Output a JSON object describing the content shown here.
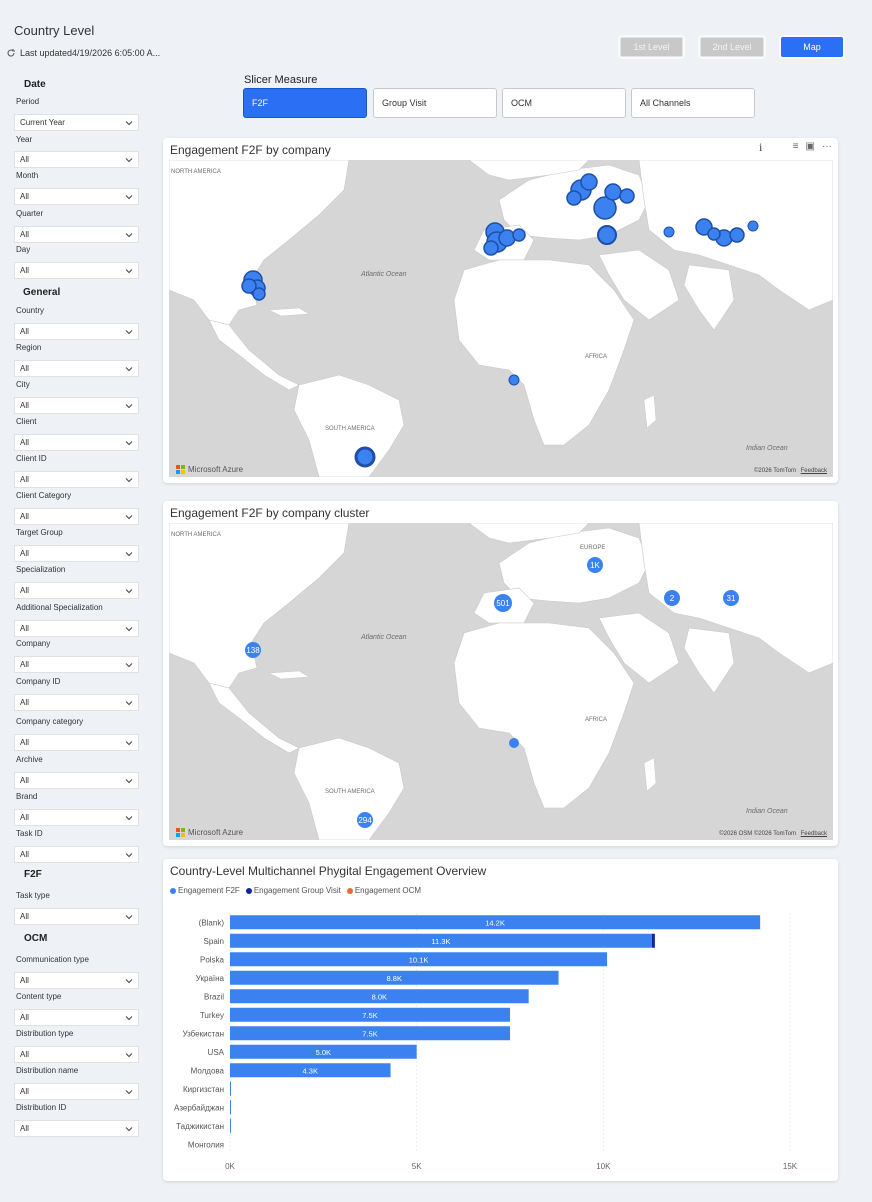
{
  "header": {
    "title": "Country Level",
    "last_updated": "Last updated4/19/2026 6:05:00 A..."
  },
  "nav": {
    "first_level": "1st Level",
    "second_level": "2nd Level",
    "map": "Map"
  },
  "filters": {
    "date_title": "Date",
    "general_title": "General",
    "f2f_title": "F2F",
    "ocm_title": "OCM",
    "items": [
      {
        "label": "Period",
        "value": "Current Year"
      },
      {
        "label": "Year",
        "value": "All"
      },
      {
        "label": "Month",
        "value": "All"
      },
      {
        "label": "Quarter",
        "value": "All"
      },
      {
        "label": "Day",
        "value": "All"
      },
      {
        "label": "Country",
        "value": "All"
      },
      {
        "label": "Region",
        "value": "All"
      },
      {
        "label": "City",
        "value": "All"
      },
      {
        "label": "Client",
        "value": "All"
      },
      {
        "label": "Client ID",
        "value": "All"
      },
      {
        "label": "Client Category",
        "value": "All"
      },
      {
        "label": "Target Group",
        "value": "All"
      },
      {
        "label": "Specialization",
        "value": "All"
      },
      {
        "label": "Additional Specialization",
        "value": "All"
      },
      {
        "label": "Company",
        "value": "All"
      },
      {
        "label": "Company ID",
        "value": "All"
      },
      {
        "label": "Company category",
        "value": "All"
      },
      {
        "label": "Archive",
        "value": "All"
      },
      {
        "label": "Brand",
        "value": "All"
      },
      {
        "label": "Task ID",
        "value": "All"
      },
      {
        "label": "Task type",
        "value": "All"
      },
      {
        "label": "Communication type",
        "value": "All"
      },
      {
        "label": "Content type",
        "value": "All"
      },
      {
        "label": "Distribution type",
        "value": "All"
      },
      {
        "label": "Distribution name",
        "value": "All"
      },
      {
        "label": "Distribution ID",
        "value": "All"
      }
    ]
  },
  "slicer": {
    "title": "Slicer Measure",
    "options": [
      "F2F",
      "Group Visit",
      "OCM",
      "All Channels"
    ],
    "selected": "F2F"
  },
  "map1": {
    "title": "Engagement F2F by company",
    "labels": {
      "north_america": "NORTH AMERICA",
      "atlantic": "Atlantic Ocean",
      "africa": "AFRICA",
      "south_america": "SOUTH AMERICA",
      "indian": "Indian Ocean"
    },
    "attribution": "Microsoft Azure",
    "copyright": "©2026 TomTom",
    "feedback": "Feedback"
  },
  "map2": {
    "title": "Engagement F2F by company cluster",
    "labels": {
      "north_america": "NORTH AMERICA",
      "atlantic": "Atlantic Ocean",
      "africa": "AFRICA",
      "south_america": "SOUTH AMERICA",
      "indian": "Indian Ocean",
      "europe": "EUROPE"
    },
    "clusters": [
      "1K",
      "501",
      "2",
      "31",
      "138",
      "294"
    ],
    "attribution": "Microsoft Azure",
    "copyright": "©2026 OSM  ©2026 TomTom",
    "feedback": "Feedback"
  },
  "colors": {
    "f2f": "#3b82f0",
    "group_visit": "#12239e",
    "ocm": "#e66c37",
    "accent": "#2b6ff5"
  },
  "chart_data": {
    "type": "bar",
    "orientation": "horizontal",
    "stacked": true,
    "title": "Country-Level Multichannel Phygital Engagement Overview",
    "categories": [
      "(Blank)",
      "Spain",
      "Polska",
      "Україна",
      "Brazil",
      "Turkey",
      "Узбекистан",
      "USA",
      "Молдова",
      "Киргизстан",
      "Азербайджан",
      "Таджикистан",
      "Монголия"
    ],
    "series": [
      {
        "name": "Engagement F2F",
        "values": [
          14200,
          11300,
          10100,
          8800,
          8000,
          7500,
          7500,
          5000,
          4300,
          20,
          20,
          20,
          0
        ],
        "labels": [
          "14.2K",
          "11.3K",
          "10.1K",
          "8.8K",
          "8.0K",
          "7.5K",
          "7.5K",
          "5.0K",
          "4.3K",
          "",
          "",
          "",
          ""
        ]
      },
      {
        "name": "Engagement Group Visit",
        "values": [
          0,
          80,
          0,
          0,
          0,
          0,
          0,
          0,
          0,
          0,
          0,
          0,
          0
        ]
      },
      {
        "name": "Engagement OCM",
        "values": [
          0,
          0,
          0,
          0,
          0,
          0,
          0,
          0,
          0,
          0,
          0,
          0,
          0
        ]
      }
    ],
    "xlim": [
      0,
      15000
    ],
    "xticks": [
      "0K",
      "5K",
      "10K",
      "15K"
    ],
    "grid": true,
    "legend_position": "top-left"
  }
}
